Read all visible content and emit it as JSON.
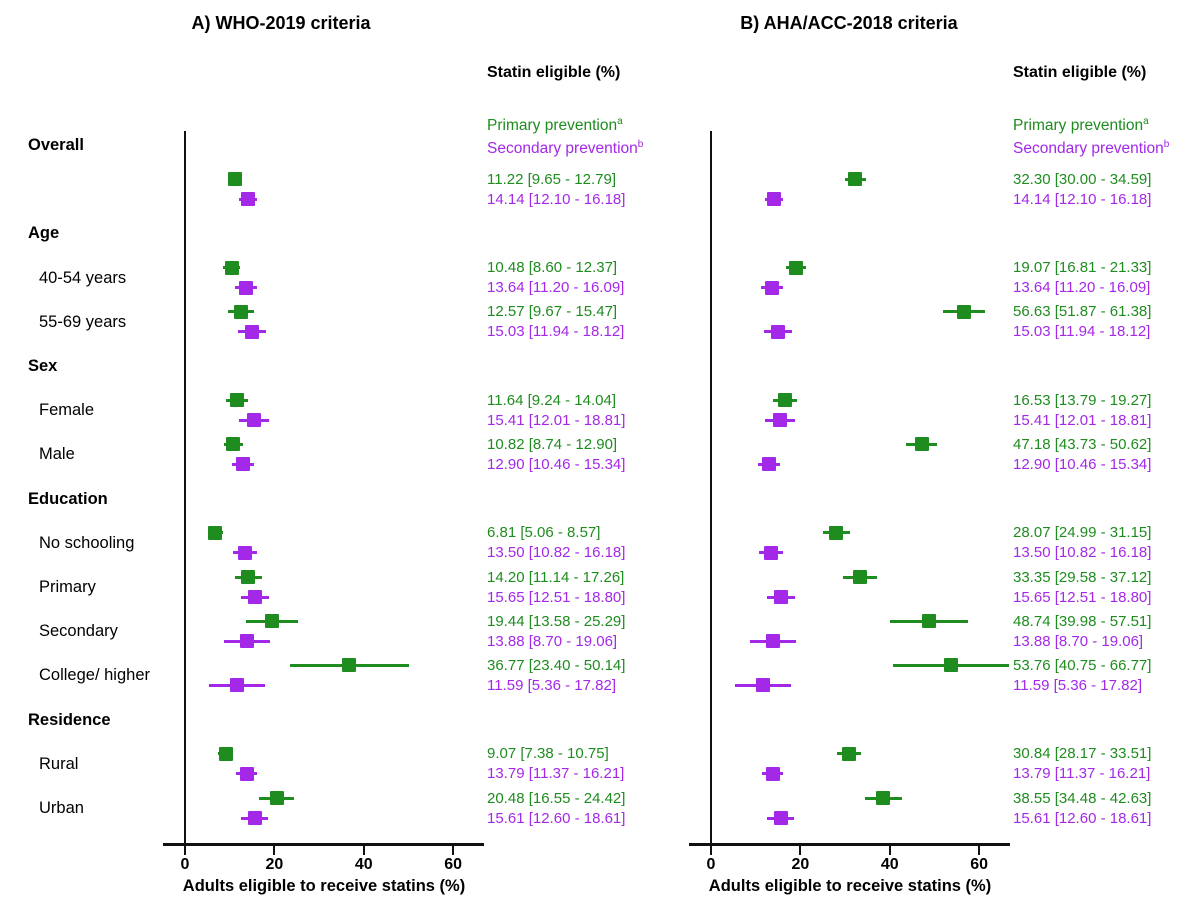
{
  "chart_data": {
    "type": "forest",
    "value_col_header": "Statin eligible (%)",
    "xlabel": "Adults eligible to receive statins (%)",
    "xticks": [
      0,
      20,
      40,
      60
    ],
    "xlim": [
      -5,
      67
    ],
    "grid": false,
    "colors": {
      "primary": "#1F8C1F",
      "secondary": "#A428E8",
      "axis": "#111111"
    },
    "panels": [
      {
        "key": "who",
        "title": "A) WHO-2019 criteria"
      },
      {
        "key": "aha",
        "title": "B) AHA/ACC-2018 criteria"
      }
    ],
    "legend": [
      {
        "label": "Primary prevention",
        "sup": "a",
        "series": "primary"
      },
      {
        "label": "Secondary prevention",
        "sup": "b",
        "series": "secondary"
      }
    ],
    "rows": [
      {
        "kind": "header",
        "label": "Overall"
      },
      {
        "kind": "data",
        "label": "",
        "who": {
          "primary": {
            "est": 11.22,
            "lo": 9.65,
            "hi": 12.79,
            "text": "11.22 [9.65 - 12.79]"
          },
          "secondary": {
            "est": 14.14,
            "lo": 12.1,
            "hi": 16.18,
            "text": "14.14 [12.10 - 16.18]"
          }
        },
        "aha": {
          "primary": {
            "est": 32.3,
            "lo": 30.0,
            "hi": 34.59,
            "text": "32.30 [30.00 - 34.59]"
          },
          "secondary": {
            "est": 14.14,
            "lo": 12.1,
            "hi": 16.18,
            "text": "14.14 [12.10 - 16.18]"
          }
        }
      },
      {
        "kind": "header",
        "label": "Age"
      },
      {
        "kind": "data",
        "label": "40-54 years",
        "who": {
          "primary": {
            "est": 10.48,
            "lo": 8.6,
            "hi": 12.37,
            "text": "10.48 [8.60 - 12.37]"
          },
          "secondary": {
            "est": 13.64,
            "lo": 11.2,
            "hi": 16.09,
            "text": "13.64 [11.20 - 16.09]"
          }
        },
        "aha": {
          "primary": {
            "est": 19.07,
            "lo": 16.81,
            "hi": 21.33,
            "text": "19.07 [16.81 - 21.33]"
          },
          "secondary": {
            "est": 13.64,
            "lo": 11.2,
            "hi": 16.09,
            "text": "13.64 [11.20 - 16.09]"
          }
        }
      },
      {
        "kind": "data",
        "label": "55-69 years",
        "who": {
          "primary": {
            "est": 12.57,
            "lo": 9.67,
            "hi": 15.47,
            "text": "12.57 [9.67 - 15.47]"
          },
          "secondary": {
            "est": 15.03,
            "lo": 11.94,
            "hi": 18.12,
            "text": "15.03 [11.94 - 18.12]"
          }
        },
        "aha": {
          "primary": {
            "est": 56.63,
            "lo": 51.87,
            "hi": 61.38,
            "text": "56.63 [51.87 - 61.38]"
          },
          "secondary": {
            "est": 15.03,
            "lo": 11.94,
            "hi": 18.12,
            "text": "15.03 [11.94 - 18.12]"
          }
        }
      },
      {
        "kind": "header",
        "label": "Sex"
      },
      {
        "kind": "data",
        "label": "Female",
        "who": {
          "primary": {
            "est": 11.64,
            "lo": 9.24,
            "hi": 14.04,
            "text": "11.64 [9.24 - 14.04]"
          },
          "secondary": {
            "est": 15.41,
            "lo": 12.01,
            "hi": 18.81,
            "text": "15.41 [12.01 - 18.81]"
          }
        },
        "aha": {
          "primary": {
            "est": 16.53,
            "lo": 13.79,
            "hi": 19.27,
            "text": "16.53 [13.79 - 19.27]"
          },
          "secondary": {
            "est": 15.41,
            "lo": 12.01,
            "hi": 18.81,
            "text": "15.41 [12.01 - 18.81]"
          }
        }
      },
      {
        "kind": "data",
        "label": "Male",
        "who": {
          "primary": {
            "est": 10.82,
            "lo": 8.74,
            "hi": 12.9,
            "text": "10.82 [8.74 - 12.90]"
          },
          "secondary": {
            "est": 12.9,
            "lo": 10.46,
            "hi": 15.34,
            "text": "12.90 [10.46 - 15.34]"
          }
        },
        "aha": {
          "primary": {
            "est": 47.18,
            "lo": 43.73,
            "hi": 50.62,
            "text": "47.18 [43.73 - 50.62]"
          },
          "secondary": {
            "est": 12.9,
            "lo": 10.46,
            "hi": 15.34,
            "text": "12.90 [10.46 - 15.34]"
          }
        }
      },
      {
        "kind": "header",
        "label": "Education"
      },
      {
        "kind": "data",
        "label": "No schooling",
        "who": {
          "primary": {
            "est": 6.81,
            "lo": 5.06,
            "hi": 8.57,
            "text": "6.81 [5.06 - 8.57]"
          },
          "secondary": {
            "est": 13.5,
            "lo": 10.82,
            "hi": 16.18,
            "text": "13.50 [10.82 - 16.18]"
          }
        },
        "aha": {
          "primary": {
            "est": 28.07,
            "lo": 24.99,
            "hi": 31.15,
            "text": "28.07 [24.99 - 31.15]"
          },
          "secondary": {
            "est": 13.5,
            "lo": 10.82,
            "hi": 16.18,
            "text": "13.50 [10.82 - 16.18]"
          }
        }
      },
      {
        "kind": "data",
        "label": "Primary",
        "who": {
          "primary": {
            "est": 14.2,
            "lo": 11.14,
            "hi": 17.26,
            "text": "14.20 [11.14 - 17.26]"
          },
          "secondary": {
            "est": 15.65,
            "lo": 12.51,
            "hi": 18.8,
            "text": "15.65 [12.51 - 18.80]"
          }
        },
        "aha": {
          "primary": {
            "est": 33.35,
            "lo": 29.58,
            "hi": 37.12,
            "text": "33.35 [29.58 - 37.12]"
          },
          "secondary": {
            "est": 15.65,
            "lo": 12.51,
            "hi": 18.8,
            "text": "15.65 [12.51 - 18.80]"
          }
        }
      },
      {
        "kind": "data",
        "label": "Secondary",
        "who": {
          "primary": {
            "est": 19.44,
            "lo": 13.58,
            "hi": 25.29,
            "text": "19.44 [13.58 - 25.29]"
          },
          "secondary": {
            "est": 13.88,
            "lo": 8.7,
            "hi": 19.06,
            "text": "13.88 [8.70 - 19.06]"
          }
        },
        "aha": {
          "primary": {
            "est": 48.74,
            "lo": 39.98,
            "hi": 57.51,
            "text": "48.74 [39.98 - 57.51]"
          },
          "secondary": {
            "est": 13.88,
            "lo": 8.7,
            "hi": 19.06,
            "text": "13.88 [8.70 - 19.06]"
          }
        }
      },
      {
        "kind": "data",
        "label": "College/ higher",
        "who": {
          "primary": {
            "est": 36.77,
            "lo": 23.4,
            "hi": 50.14,
            "text": "36.77 [23.40 - 50.14]"
          },
          "secondary": {
            "est": 11.59,
            "lo": 5.36,
            "hi": 17.82,
            "text": "11.59 [5.36 - 17.82]"
          }
        },
        "aha": {
          "primary": {
            "est": 53.76,
            "lo": 40.75,
            "hi": 66.77,
            "text": "53.76 [40.75 - 66.77]"
          },
          "secondary": {
            "est": 11.59,
            "lo": 5.36,
            "hi": 17.82,
            "text": "11.59 [5.36 - 17.82]"
          }
        }
      },
      {
        "kind": "header",
        "label": "Residence"
      },
      {
        "kind": "data",
        "label": "Rural",
        "who": {
          "primary": {
            "est": 9.07,
            "lo": 7.38,
            "hi": 10.75,
            "text": "9.07 [7.38 - 10.75]"
          },
          "secondary": {
            "est": 13.79,
            "lo": 11.37,
            "hi": 16.21,
            "text": "13.79 [11.37 - 16.21]"
          }
        },
        "aha": {
          "primary": {
            "est": 30.84,
            "lo": 28.17,
            "hi": 33.51,
            "text": "30.84 [28.17 - 33.51]"
          },
          "secondary": {
            "est": 13.79,
            "lo": 11.37,
            "hi": 16.21,
            "text": "13.79 [11.37 - 16.21]"
          }
        }
      },
      {
        "kind": "data",
        "label": "Urban",
        "who": {
          "primary": {
            "est": 20.48,
            "lo": 16.55,
            "hi": 24.42,
            "text": "20.48 [16.55 - 24.42]"
          },
          "secondary": {
            "est": 15.61,
            "lo": 12.6,
            "hi": 18.61,
            "text": "15.61 [12.60 - 18.61]"
          }
        },
        "aha": {
          "primary": {
            "est": 38.55,
            "lo": 34.48,
            "hi": 42.63,
            "text": "38.55 [34.48 - 42.63]"
          },
          "secondary": {
            "est": 15.61,
            "lo": 12.6,
            "hi": 18.61,
            "text": "15.61 [12.60 - 18.61]"
          }
        }
      }
    ]
  }
}
